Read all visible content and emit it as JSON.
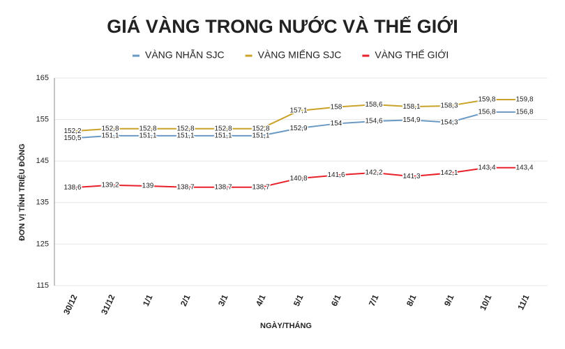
{
  "chart_data": {
    "type": "line",
    "title": "GIÁ VÀNG TRONG NƯỚC VÀ THẾ GIỚI",
    "x_label": "NGÀY/THÁNG",
    "y_label": "ĐƠN VỊ TÍNH TRIỆU ĐỒNG",
    "categories": [
      "30/12",
      "31/12",
      "1/1",
      "2/1",
      "3/1",
      "4/1",
      "5/1",
      "6/1",
      "7/1",
      "8/1",
      "9/1",
      "10/1",
      "11/1"
    ],
    "ylim": [
      115,
      165
    ],
    "yticks": [
      115,
      125,
      135,
      145,
      155,
      165
    ],
    "grid": true,
    "legend": "top",
    "series": [
      {
        "name": "VÀNG NHẪN SJC",
        "color": "#6a9ac4",
        "values": [
          150.5,
          151.1,
          151.1,
          151.1,
          151.1,
          151.1,
          152.9,
          154,
          154.6,
          154.9,
          154.3,
          156.8,
          156.8
        ],
        "value_labels": [
          "150,5",
          "151,1",
          "151,1",
          "151,1",
          "151,1",
          "151,1",
          "152,9",
          "154",
          "154,6",
          "154,9",
          "154,3",
          "156,8",
          "156,8"
        ]
      },
      {
        "name": "VÀNG MIẾNG SJC",
        "color": "#c9a227",
        "values": [
          152.2,
          152.8,
          152.8,
          152.8,
          152.8,
          152.8,
          157.1,
          158,
          158.6,
          158.1,
          158.3,
          159.8,
          159.8
        ],
        "value_labels": [
          "152,2",
          "152,8",
          "152,8",
          "152,8",
          "152,8",
          "152,8",
          "157,1",
          "158",
          "158,6",
          "158,1",
          "158,3",
          "159,8",
          "159,8"
        ]
      },
      {
        "name": "VÀNG THẾ GIỚI",
        "color": "#e8202a",
        "values": [
          138.6,
          139.2,
          139,
          138.7,
          138.7,
          138.7,
          140.8,
          141.6,
          142.2,
          141.3,
          142.1,
          143.4,
          143.4
        ],
        "value_labels": [
          "138,6",
          "139,2",
          "139",
          "138,7",
          "138,7",
          "138,7",
          "140,8",
          "141,6",
          "142,2",
          "141,3",
          "142,1",
          "143,4",
          "143,4"
        ]
      }
    ]
  }
}
